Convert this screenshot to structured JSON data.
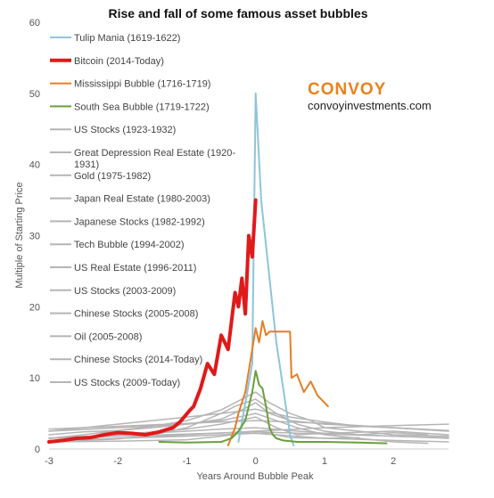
{
  "chart_data": {
    "type": "line",
    "title": "Rise and fall of some famous asset bubbles",
    "xlabel": "Years Around Bubble Peak",
    "ylabel": "Multiple of Starting Price",
    "xlim": [
      -3,
      2.8
    ],
    "ylim": [
      0,
      60
    ],
    "x_ticks": [
      -3,
      -2,
      -1,
      0,
      1,
      2
    ],
    "y_ticks": [
      0,
      10,
      20,
      30,
      40,
      50,
      60
    ],
    "grid": false,
    "legend_position": "top-left",
    "series": [
      {
        "name": "Tulip Mania (1619-1622)",
        "color": "#8fc4dc",
        "width": 2,
        "x": [
          -0.25,
          -0.05,
          0.0,
          0.08,
          0.3,
          0.5,
          0.55
        ],
        "y": [
          1,
          12,
          50,
          35,
          15,
          2,
          0.5
        ]
      },
      {
        "name": "Bitcoin (2014-Today)",
        "color": "#e0191b",
        "width": 4,
        "x": [
          -3.0,
          -2.8,
          -2.6,
          -2.4,
          -2.2,
          -2.0,
          -1.8,
          -1.6,
          -1.4,
          -1.2,
          -1.1,
          -0.95,
          -0.9,
          -0.8,
          -0.7,
          -0.6,
          -0.5,
          -0.45,
          -0.4,
          -0.35,
          -0.3,
          -0.25,
          -0.2,
          -0.15,
          -0.1,
          -0.05,
          0.0
        ],
        "y": [
          1.0,
          1.2,
          1.5,
          1.6,
          2.0,
          2.3,
          2.2,
          2.0,
          2.4,
          3.0,
          3.8,
          5.5,
          6.0,
          8.5,
          12.0,
          10.5,
          16.0,
          15.0,
          14.0,
          18.0,
          22.0,
          20.0,
          24.0,
          19.0,
          30.0,
          27.0,
          35.0
        ]
      },
      {
        "name": "Mississippi Bubble (1716-1719)",
        "color": "#e57e23",
        "width": 2,
        "x": [
          -0.4,
          -0.3,
          -0.25,
          -0.15,
          -0.05,
          0.0,
          0.05,
          0.1,
          0.15,
          0.2,
          0.3,
          0.5,
          0.52,
          0.6,
          0.7,
          0.8,
          0.9,
          1.0,
          1.05
        ],
        "y": [
          0.5,
          3.0,
          5.0,
          8.0,
          14.0,
          17.0,
          15.0,
          18.0,
          16.0,
          16.5,
          16.5,
          16.5,
          10.0,
          10.5,
          8.0,
          9.5,
          7.5,
          6.5,
          6.0
        ]
      },
      {
        "name": "South Sea Bubble (1719-1722)",
        "color": "#6a9f3b",
        "width": 2,
        "x": [
          -1.4,
          -1.0,
          -0.5,
          -0.35,
          -0.25,
          -0.15,
          -0.05,
          0.0,
          0.05,
          0.1,
          0.15,
          0.2,
          0.25,
          0.3,
          0.4,
          0.6,
          1.0,
          1.5,
          1.9
        ],
        "y": [
          1.0,
          0.9,
          1.0,
          1.5,
          2.5,
          4.0,
          8.0,
          11.0,
          9.0,
          8.5,
          6.0,
          3.0,
          2.0,
          1.5,
          1.2,
          1.0,
          1.0,
          0.9,
          0.8
        ]
      },
      {
        "name": "US Stocks (1923-1932)",
        "color": "#b5b5b5",
        "width": 1.5,
        "x": [
          -3.0,
          -2.5,
          -2.0,
          -1.5,
          -1.0,
          -0.5,
          -0.2,
          0.0,
          0.3,
          0.6,
          1.0,
          1.5,
          2.0,
          2.5
        ],
        "y": [
          2.0,
          2.4,
          2.6,
          3.0,
          3.5,
          4.0,
          4.6,
          5.0,
          4.0,
          3.0,
          2.0,
          1.5,
          1.0,
          0.8
        ]
      },
      {
        "name": "Great Depression Real Estate (1920-1931)",
        "color": "#b5b5b5",
        "width": 1.5,
        "x": [
          -3.0,
          -2.0,
          -1.0,
          -0.5,
          0.0,
          0.5,
          1.0,
          2.0,
          2.8
        ],
        "y": [
          1.5,
          2.0,
          2.5,
          2.8,
          3.0,
          2.6,
          2.2,
          1.8,
          1.5
        ]
      },
      {
        "name": "Gold (1975-1982)",
        "color": "#b5b5b5",
        "width": 1.5,
        "x": [
          -3.0,
          -2.0,
          -1.0,
          -0.5,
          -0.2,
          0.0,
          0.2,
          0.5,
          1.0,
          2.0,
          2.8
        ],
        "y": [
          2.5,
          3.0,
          3.5,
          4.2,
          5.5,
          6.5,
          5.0,
          4.0,
          3.5,
          3.0,
          2.5
        ]
      },
      {
        "name": "Japan Real Estate (1980-2003)",
        "color": "#b5b5b5",
        "width": 1.5,
        "x": [
          -3.0,
          -2.0,
          -1.0,
          0.0,
          1.0,
          2.0,
          2.8
        ],
        "y": [
          2.8,
          3.2,
          3.6,
          4.0,
          3.6,
          3.0,
          2.6
        ]
      },
      {
        "name": "Japanese Stocks (1982-1992)",
        "color": "#b5b5b5",
        "width": 1.5,
        "x": [
          -3.0,
          -2.5,
          -2.0,
          -1.5,
          -1.0,
          -0.5,
          0.0,
          0.5,
          1.0,
          1.5,
          2.0,
          2.8
        ],
        "y": [
          2.5,
          3.0,
          3.5,
          4.0,
          4.5,
          5.0,
          5.6,
          4.5,
          3.8,
          3.2,
          3.0,
          2.5
        ]
      },
      {
        "name": "Tech Bubble (1994-2002)",
        "color": "#b5b5b5",
        "width": 1.5,
        "x": [
          -3.0,
          -2.5,
          -2.0,
          -1.5,
          -1.0,
          -0.5,
          -0.2,
          0.0,
          0.2,
          0.5,
          0.8,
          1.0,
          1.5,
          2.0,
          2.8
        ],
        "y": [
          1.5,
          2.0,
          2.6,
          3.2,
          4.0,
          5.5,
          7.0,
          8.0,
          6.5,
          5.0,
          4.0,
          3.0,
          2.5,
          2.0,
          1.8
        ]
      },
      {
        "name": "US Real Estate (1996-2011)",
        "color": "#b5b5b5",
        "width": 1.5,
        "x": [
          -3.0,
          -2.0,
          -1.0,
          0.0,
          1.0,
          2.0,
          2.8
        ],
        "y": [
          1.5,
          1.8,
          2.1,
          2.4,
          2.1,
          1.8,
          1.6
        ]
      },
      {
        "name": "US Stocks (2003-2009)",
        "color": "#b5b5b5",
        "width": 1.5,
        "x": [
          -3.0,
          -2.0,
          -1.0,
          0.0,
          1.0,
          2.0,
          2.8
        ],
        "y": [
          1.2,
          1.5,
          1.8,
          2.2,
          1.5,
          1.2,
          1.0
        ]
      },
      {
        "name": "Chinese Stocks (2005-2008)",
        "color": "#b5b5b5",
        "width": 1.5,
        "x": [
          -3.0,
          -2.5,
          -2.0,
          -1.5,
          -1.0,
          -0.5,
          -0.3,
          0.0,
          0.3,
          0.6,
          1.0,
          1.5,
          2.0,
          2.5
        ],
        "y": [
          1.0,
          1.2,
          1.4,
          2.0,
          3.0,
          5.0,
          6.0,
          7.0,
          5.0,
          3.5,
          2.5,
          2.0,
          2.3,
          2.0
        ]
      },
      {
        "name": "Oil (2005-2008)",
        "color": "#b5b5b5",
        "width": 1.5,
        "x": [
          -3.0,
          -2.0,
          -1.0,
          -0.5,
          0.0,
          0.3,
          0.6,
          1.0,
          2.0,
          2.8
        ],
        "y": [
          1.5,
          2.0,
          2.8,
          3.5,
          4.5,
          3.0,
          2.0,
          2.2,
          2.5,
          2.0
        ]
      },
      {
        "name": "Chinese Stocks (2014-Today)",
        "color": "#b5b5b5",
        "width": 1.5,
        "x": [
          -3.0,
          -2.0,
          -1.0,
          -0.5,
          0.0,
          0.5,
          1.0,
          1.5
        ],
        "y": [
          1.0,
          1.1,
          1.3,
          1.8,
          2.5,
          1.6,
          1.5,
          1.6
        ]
      },
      {
        "name": "US Stocks (2009-Today)",
        "color": "#b5b5b5",
        "width": 1.5,
        "x": [
          -3.0,
          -2.0,
          -1.0,
          0.0,
          1.0,
          2.0,
          2.8
        ],
        "y": [
          1.0,
          1.5,
          2.0,
          2.5,
          3.0,
          3.3,
          3.5
        ]
      }
    ]
  },
  "branding": {
    "name": "CONVOY",
    "url": "convoyinvestments.com"
  }
}
